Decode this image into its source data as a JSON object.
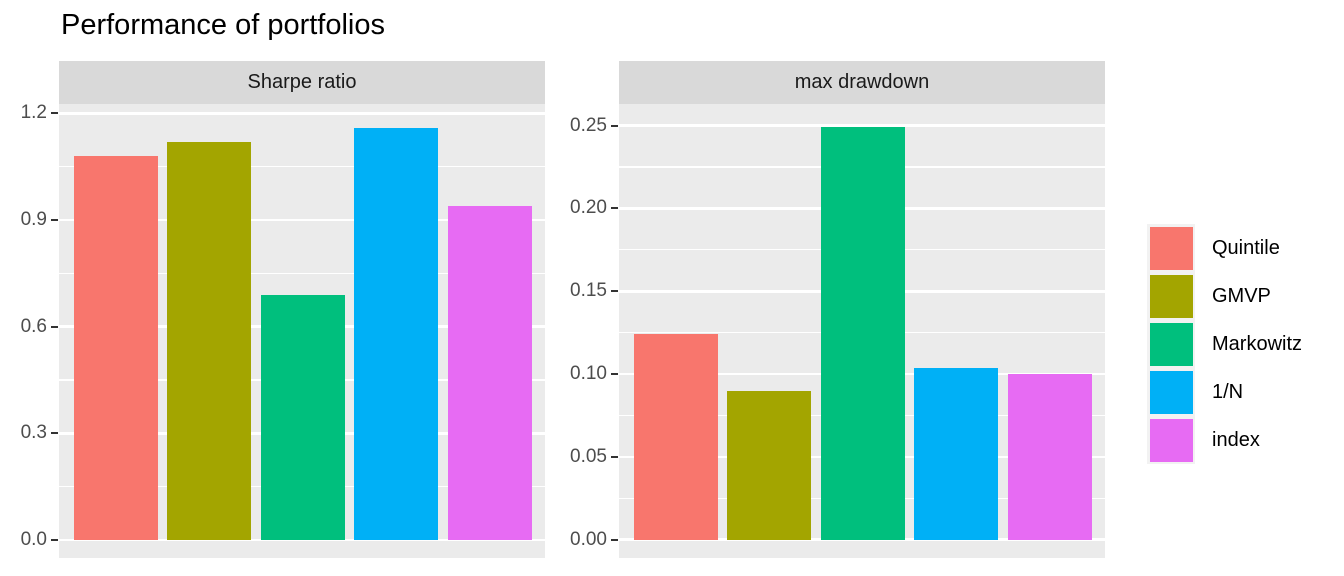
{
  "title": "Performance of portfolios",
  "chart_data": [
    {
      "type": "bar",
      "facet_label": "Sharpe ratio",
      "categories": [
        "Quintile",
        "GMVP",
        "Markowitz",
        "1/N",
        "index"
      ],
      "values": [
        1.08,
        1.12,
        0.69,
        1.16,
        0.94
      ],
      "xlabel": "",
      "ylabel": "",
      "ytick_labels": [
        "0.0",
        "0.3",
        "0.6",
        "0.9",
        "1.2"
      ],
      "ytick_values": [
        0,
        0.3,
        0.6,
        0.9,
        1.2
      ],
      "minor_tick_values": [
        0.15,
        0.45,
        0.75,
        1.05
      ],
      "ylim": [
        -0.051,
        1.226
      ],
      "grid": "on",
      "x_axis_labels_shown": false
    },
    {
      "type": "bar",
      "facet_label": "max drawdown",
      "categories": [
        "Quintile",
        "GMVP",
        "Markowitz",
        "1/N",
        "index"
      ],
      "values": [
        0.124,
        0.09,
        0.249,
        0.104,
        0.1
      ],
      "xlabel": "",
      "ylabel": "",
      "ytick_labels": [
        "0.00",
        "0.05",
        "0.10",
        "0.15",
        "0.20",
        "0.25"
      ],
      "ytick_values": [
        0,
        0.05,
        0.1,
        0.15,
        0.2,
        0.25
      ],
      "minor_tick_values": [
        0.025,
        0.075,
        0.125,
        0.175,
        0.225
      ],
      "ylim": [
        -0.011,
        0.263
      ],
      "grid": "on",
      "x_axis_labels_shown": false
    }
  ],
  "legend": {
    "position": "right",
    "title": "",
    "entries": [
      {
        "label": "Quintile",
        "color": "#F8766D"
      },
      {
        "label": "GMVP",
        "color": "#A3A500"
      },
      {
        "label": "Markowitz",
        "color": "#00BF7D"
      },
      {
        "label": "1/N",
        "color": "#00B0F6"
      },
      {
        "label": "index",
        "color": "#E76BF3"
      }
    ]
  },
  "colors": {
    "figure_background": "#FFFFFF",
    "panel_background": "#EBEBEB",
    "strip_background": "#D9D9D9",
    "strip_text": "#1A1A1A",
    "grid_major": "#FFFFFF",
    "grid_minor": "#FFFFFF",
    "axis_text": "#4D4D4D",
    "tick_mark": "#333333",
    "legend_key_background": "#F2F2F2"
  }
}
